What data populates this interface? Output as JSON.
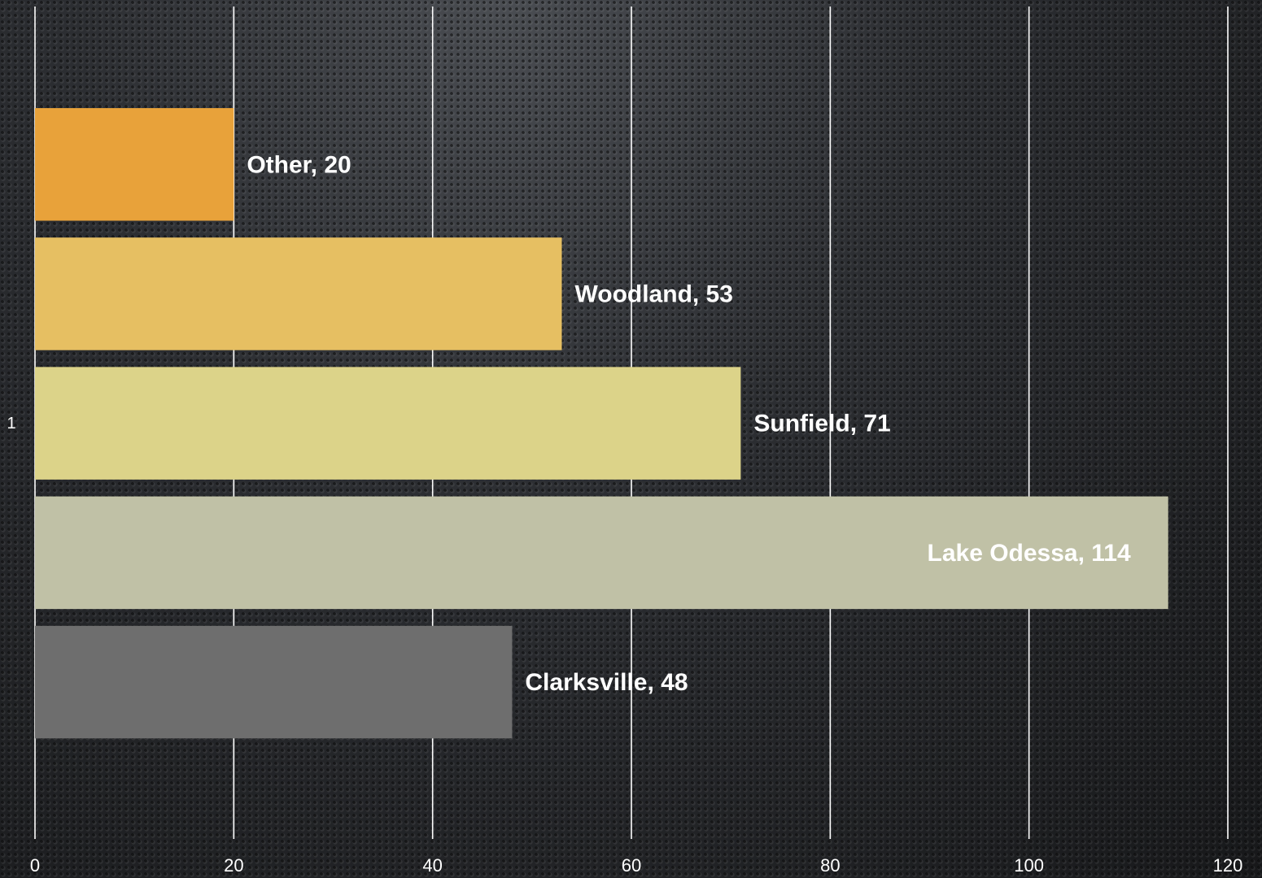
{
  "chart_data": {
    "type": "bar",
    "orientation": "horizontal",
    "categories": [
      "1"
    ],
    "series": [
      {
        "name": "Other",
        "values": [
          20
        ],
        "color": "#e8a23a",
        "label": "Other, 20"
      },
      {
        "name": "Woodland",
        "values": [
          53
        ],
        "color": "#e6bf62",
        "label": "Woodland, 53"
      },
      {
        "name": "Sunfield",
        "values": [
          71
        ],
        "color": "#dcd389",
        "label": "Sunfield, 71"
      },
      {
        "name": "Lake Odessa",
        "values": [
          114
        ],
        "color": "#c0c1a6",
        "label": "Lake Odessa, 114"
      },
      {
        "name": "Clarksville",
        "values": [
          48
        ],
        "color": "#6e6e6e",
        "label": "Clarksville, 48"
      }
    ],
    "x_ticks": [
      "0",
      "20",
      "40",
      "60",
      "80",
      "100",
      "120"
    ],
    "xlim": [
      0,
      120
    ],
    "title": "",
    "xlabel": "",
    "ylabel": "",
    "grid": true,
    "legend": "none"
  }
}
